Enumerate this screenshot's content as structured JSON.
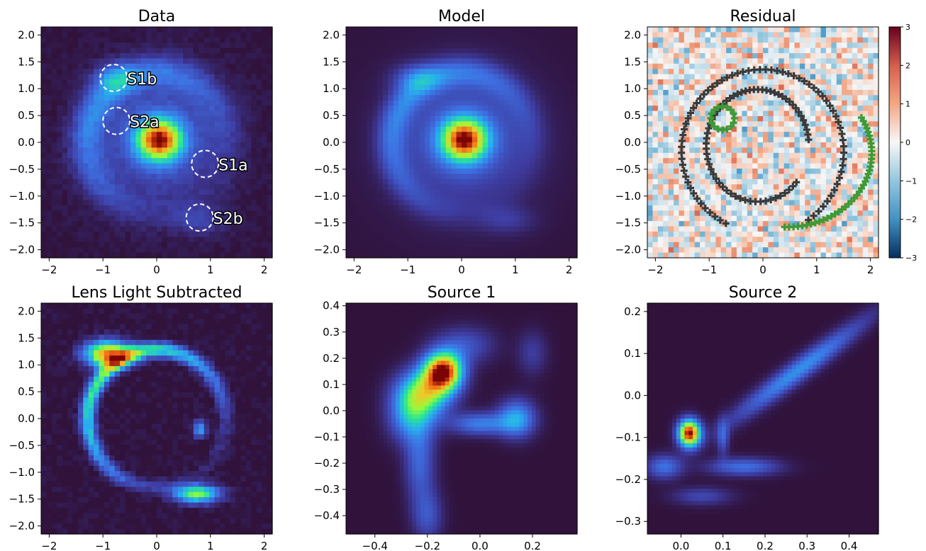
{
  "figure": {
    "panels": [
      {
        "id": "data",
        "title": "Data",
        "type": "heatmap",
        "xlim": [
          -2.15,
          2.15
        ],
        "ylim": [
          -2.15,
          2.15
        ],
        "xticks": [
          -2,
          -1,
          0,
          1,
          2
        ],
        "yticks": [
          -2.0,
          -1.5,
          -1.0,
          -0.5,
          0.0,
          0.5,
          1.0,
          1.5,
          2.0
        ],
        "grid": false,
        "colormap": "turbo",
        "annotations": [
          {
            "label": "S1b",
            "x": -0.8,
            "y": 1.2
          },
          {
            "label": "S2a",
            "x": -0.75,
            "y": 0.4
          },
          {
            "label": "S1a",
            "x": 0.9,
            "y": -0.4
          },
          {
            "label": "S2b",
            "x": 0.8,
            "y": -1.4
          }
        ]
      },
      {
        "id": "model",
        "title": "Model",
        "type": "heatmap",
        "xlim": [
          -2.15,
          2.15
        ],
        "ylim": [
          -2.15,
          2.15
        ],
        "xticks": [
          -2,
          -1,
          0,
          1,
          2
        ],
        "yticks": [
          -2.0,
          -1.5,
          -1.0,
          -0.5,
          0.0,
          0.5,
          1.0,
          1.5,
          2.0
        ],
        "grid": false,
        "colormap": "turbo"
      },
      {
        "id": "residual",
        "title": "Residual",
        "type": "heatmap",
        "xlim": [
          -2.15,
          2.15
        ],
        "ylim": [
          -2.15,
          2.15
        ],
        "xticks": [
          -2,
          -1,
          0,
          1,
          2
        ],
        "yticks": [
          -2.0,
          -1.5,
          -1.0,
          -0.5,
          0.0,
          0.5,
          1.0,
          1.5,
          2.0
        ],
        "grid": false,
        "colormap": "RdBu_r",
        "colorbar": {
          "range": [
            -3,
            3
          ],
          "ticks": [
            "3",
            "2",
            "1",
            "0",
            "−1",
            "−2",
            "−3"
          ]
        },
        "overlay_colors": [
          "#3a3a3a",
          "#3d9a35"
        ]
      },
      {
        "id": "lens_sub",
        "title": "Lens Light Subtracted",
        "type": "heatmap",
        "xlim": [
          -2.15,
          2.15
        ],
        "ylim": [
          -2.15,
          2.15
        ],
        "xticks": [
          -2,
          -1,
          0,
          1,
          2
        ],
        "yticks": [
          -2.0,
          -1.5,
          -1.0,
          -0.5,
          0.0,
          0.5,
          1.0,
          1.5,
          2.0
        ],
        "grid": false,
        "colormap": "turbo"
      },
      {
        "id": "source1",
        "title": "Source 1",
        "type": "heatmap",
        "xlim": [
          -0.51,
          0.37
        ],
        "ylim": [
          -0.47,
          0.41
        ],
        "xticks": [
          "−0.4",
          "−0.2",
          "0.0",
          "0.2"
        ],
        "xtick_values": [
          -0.4,
          -0.2,
          0.0,
          0.2
        ],
        "yticks": [
          "0.4",
          "0.3",
          "0.2",
          "0.1",
          "0.0",
          "−0.1",
          "−0.2",
          "−0.3",
          "−0.4"
        ],
        "ytick_values": [
          0.4,
          0.3,
          0.2,
          0.1,
          0.0,
          -0.1,
          -0.2,
          -0.3,
          -0.4
        ],
        "grid": false,
        "colormap": "turbo"
      },
      {
        "id": "source2",
        "title": "Source 2",
        "type": "heatmap",
        "xlim": [
          -0.08,
          0.47
        ],
        "ylim": [
          -0.33,
          0.22
        ],
        "xticks": [
          "0.0",
          "0.1",
          "0.2",
          "0.3",
          "0.4"
        ],
        "xtick_values": [
          0.0,
          0.1,
          0.2,
          0.3,
          0.4
        ],
        "yticks": [
          "0.2",
          "0.1",
          "0.0",
          "−0.1",
          "−0.2",
          "−0.3"
        ],
        "ytick_values": [
          0.2,
          0.1,
          0.0,
          -0.1,
          -0.2,
          -0.3
        ],
        "grid": false,
        "colormap": "turbo"
      }
    ]
  },
  "chart_data": [
    {
      "type": "heatmap",
      "title": "Data",
      "xlim": [
        -2.15,
        2.15
      ],
      "ylim": [
        -2.15,
        2.15
      ],
      "features": {
        "lens_peak": [
          0.05,
          0.05
        ],
        "ring_radius": 1.3
      }
    },
    {
      "type": "heatmap",
      "title": "Model",
      "xlim": [
        -2.15,
        2.15
      ],
      "ylim": [
        -2.15,
        2.15
      ]
    },
    {
      "type": "heatmap",
      "title": "Residual",
      "xlim": [
        -2.15,
        2.15
      ],
      "ylim": [
        -2.15,
        2.15
      ],
      "color_range": [
        -3,
        3
      ]
    },
    {
      "type": "heatmap",
      "title": "Lens Light Subtracted",
      "xlim": [
        -2.15,
        2.15
      ],
      "ylim": [
        -2.15,
        2.15
      ]
    },
    {
      "type": "heatmap",
      "title": "Source 1",
      "xlim": [
        -0.51,
        0.37
      ],
      "ylim": [
        -0.47,
        0.41
      ],
      "features": {
        "peak": [
          -0.14,
          0.15
        ]
      }
    },
    {
      "type": "heatmap",
      "title": "Source 2",
      "xlim": [
        -0.08,
        0.47
      ],
      "ylim": [
        -0.33,
        0.22
      ],
      "features": {
        "peak": [
          0.02,
          -0.09
        ]
      }
    }
  ]
}
